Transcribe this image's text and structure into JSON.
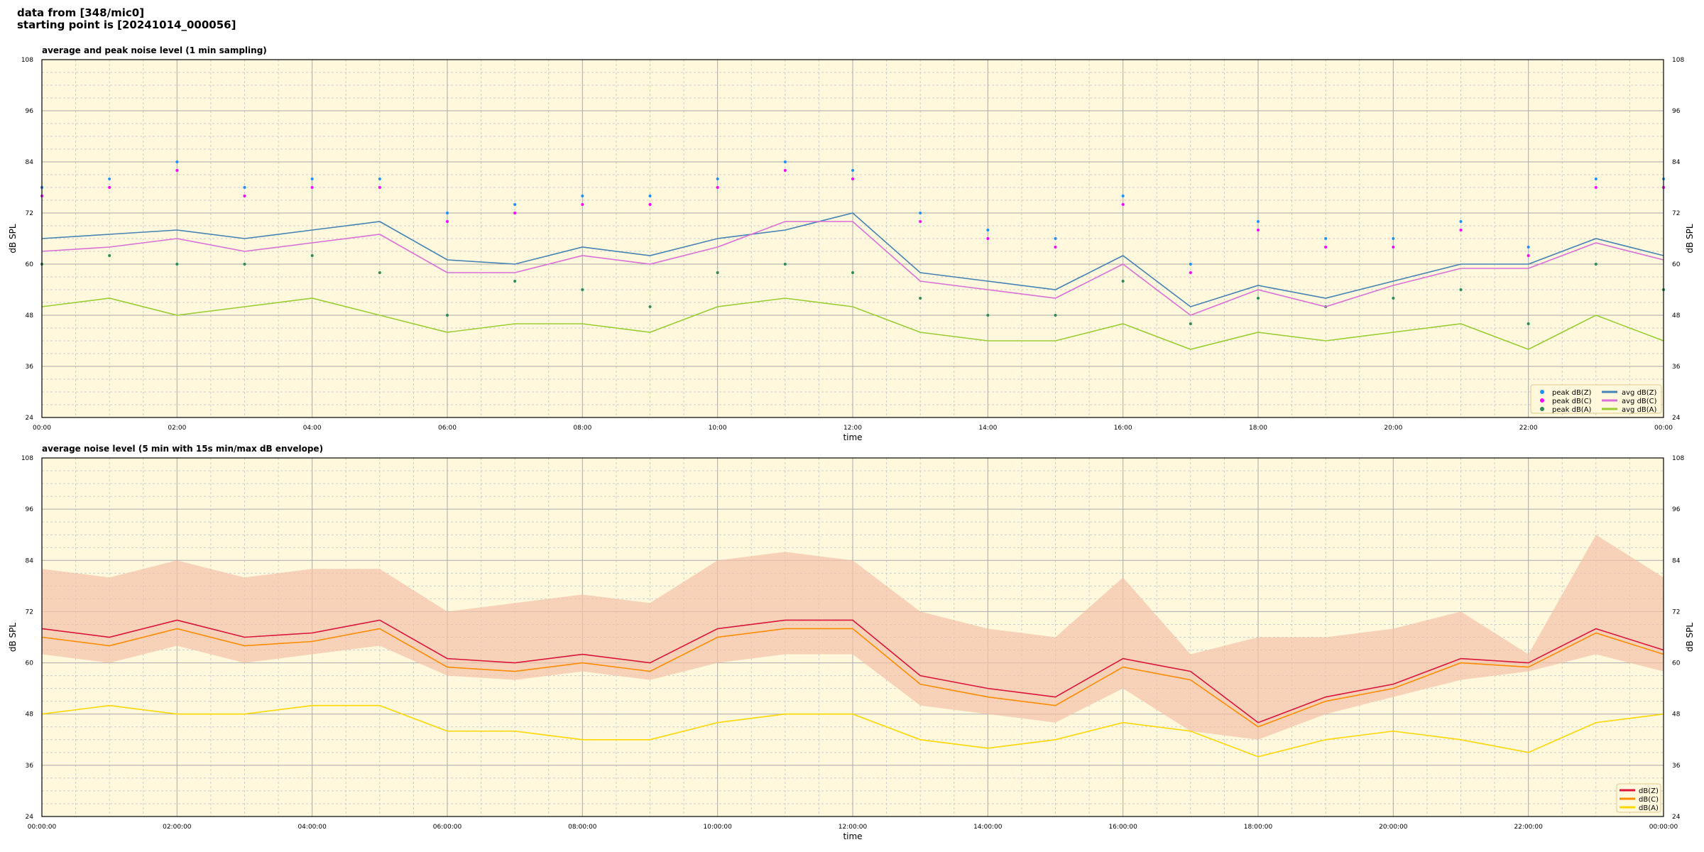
{
  "header": {
    "line1": "data from [348/mic0]",
    "line2": "starting point is [20241014_000056]"
  },
  "colors": {
    "bg": "#fff8dc",
    "z": "#4682b4",
    "c": "#da70d6",
    "a": "#9acd32",
    "peakZ": "#1e90ff",
    "peakC": "#ff00ff",
    "peakA": "#2e8b57",
    "Z2": "#dc143c",
    "C2": "#ff8c00",
    "A2": "#ffd700",
    "env": "#f4c2a8"
  },
  "chart_data": [
    {
      "type": "line",
      "title": "average and peak noise level (1 min sampling)",
      "xlabel": "time",
      "ylabel": "dB SPL",
      "ylim": [
        24,
        108
      ],
      "yticks": [
        "24",
        "36",
        "48",
        "60",
        "72",
        "84",
        "96",
        "108"
      ],
      "xticks": [
        "00:00",
        "02:00",
        "04:00",
        "06:00",
        "08:00",
        "10:00",
        "12:00",
        "14:00",
        "16:00",
        "18:00",
        "20:00",
        "22:00",
        "00:00"
      ],
      "x_hours": [
        0,
        1,
        2,
        3,
        4,
        5,
        6,
        7,
        8,
        9,
        10,
        11,
        12,
        13,
        14,
        15,
        16,
        17,
        18,
        19,
        20,
        21,
        22,
        23,
        24
      ],
      "legend": "bottom-right",
      "series": [
        {
          "name": "peak dB(Z)",
          "kind": "points",
          "color_key": "peakZ",
          "values": [
            78,
            80,
            84,
            78,
            80,
            80,
            72,
            74,
            76,
            76,
            80,
            84,
            82,
            72,
            68,
            66,
            76,
            60,
            70,
            66,
            66,
            70,
            64,
            80,
            80
          ]
        },
        {
          "name": "peak dB(C)",
          "kind": "points",
          "color_key": "peakC",
          "values": [
            76,
            78,
            82,
            76,
            78,
            78,
            70,
            72,
            74,
            74,
            78,
            82,
            80,
            70,
            66,
            64,
            74,
            58,
            68,
            64,
            64,
            68,
            62,
            78,
            78
          ]
        },
        {
          "name": "peak dB(A)",
          "kind": "points",
          "color_key": "peakA",
          "values": [
            60,
            62,
            60,
            60,
            62,
            58,
            48,
            56,
            54,
            50,
            58,
            60,
            58,
            52,
            48,
            48,
            56,
            46,
            52,
            50,
            52,
            54,
            46,
            60,
            54
          ]
        },
        {
          "name": "avg dB(Z)",
          "kind": "line",
          "color_key": "z",
          "values": [
            66,
            67,
            68,
            66,
            68,
            70,
            61,
            60,
            64,
            62,
            66,
            68,
            72,
            58,
            56,
            54,
            62,
            50,
            55,
            52,
            56,
            60,
            60,
            66,
            62
          ]
        },
        {
          "name": "avg dB(C)",
          "kind": "line",
          "color_key": "c",
          "values": [
            63,
            64,
            66,
            63,
            65,
            67,
            58,
            58,
            62,
            60,
            64,
            70,
            70,
            56,
            54,
            52,
            60,
            48,
            54,
            50,
            55,
            59,
            59,
            65,
            61
          ]
        },
        {
          "name": "avg dB(A)",
          "kind": "line",
          "color_key": "a",
          "values": [
            50,
            52,
            48,
            50,
            52,
            48,
            44,
            46,
            46,
            44,
            50,
            52,
            50,
            44,
            42,
            42,
            46,
            40,
            44,
            42,
            44,
            46,
            40,
            48,
            42
          ]
        }
      ]
    },
    {
      "type": "line",
      "title": "average noise level (5 min with 15s min/max dB envelope)",
      "xlabel": "time",
      "ylabel": "dB SPL",
      "ylim": [
        24,
        108
      ],
      "yticks": [
        "24",
        "36",
        "48",
        "60",
        "72",
        "84",
        "96",
        "108"
      ],
      "xticks": [
        "00:00:00",
        "02:00:00",
        "04:00:00",
        "06:00:00",
        "08:00:00",
        "10:00:00",
        "12:00:00",
        "14:00:00",
        "16:00:00",
        "18:00:00",
        "20:00:00",
        "22:00:00",
        "00:00:00"
      ],
      "x_hours": [
        0,
        1,
        2,
        3,
        4,
        5,
        6,
        7,
        8,
        9,
        10,
        11,
        12,
        13,
        14,
        15,
        16,
        17,
        18,
        19,
        20,
        21,
        22,
        23,
        24
      ],
      "legend": "bottom-right",
      "envelope": {
        "max": [
          82,
          80,
          84,
          80,
          82,
          82,
          72,
          74,
          76,
          74,
          84,
          86,
          84,
          72,
          68,
          66,
          80,
          62,
          66,
          66,
          68,
          72,
          62,
          90,
          80
        ],
        "min": [
          62,
          60,
          64,
          60,
          62,
          64,
          57,
          56,
          58,
          56,
          60,
          62,
          62,
          50,
          48,
          46,
          54,
          44,
          42,
          48,
          52,
          56,
          58,
          62,
          58
        ]
      },
      "series": [
        {
          "name": "dB(Z)",
          "kind": "line",
          "color_key": "Z2",
          "values": [
            68,
            66,
            70,
            66,
            67,
            70,
            61,
            60,
            62,
            60,
            68,
            70,
            70,
            57,
            54,
            52,
            61,
            58,
            46,
            52,
            55,
            61,
            60,
            68,
            63
          ]
        },
        {
          "name": "dB(C)",
          "kind": "line",
          "color_key": "C2",
          "values": [
            66,
            64,
            68,
            64,
            65,
            68,
            59,
            58,
            60,
            58,
            66,
            68,
            68,
            55,
            52,
            50,
            59,
            56,
            45,
            51,
            54,
            60,
            59,
            67,
            62
          ]
        },
        {
          "name": "dB(A)",
          "kind": "line",
          "color_key": "A2",
          "values": [
            48,
            50,
            48,
            48,
            50,
            50,
            44,
            44,
            42,
            42,
            46,
            48,
            48,
            42,
            40,
            42,
            46,
            44,
            38,
            42,
            44,
            42,
            39,
            46,
            48
          ]
        }
      ]
    }
  ]
}
